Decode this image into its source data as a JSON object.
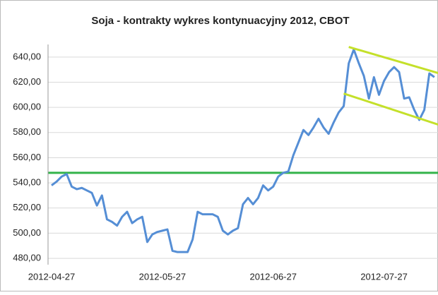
{
  "chart_data": {
    "type": "line",
    "title": "Soja - kontrakty wykres kontynuacyjny 2012, CBOT",
    "categories": [
      "2012-04-27",
      null,
      null,
      null,
      null,
      null,
      null,
      null,
      null,
      null,
      null,
      null,
      null,
      null,
      null,
      null,
      null,
      null,
      null,
      null,
      null,
      null,
      "2012-05-27",
      null,
      null,
      null,
      null,
      null,
      null,
      null,
      null,
      null,
      null,
      null,
      null,
      null,
      null,
      null,
      null,
      null,
      null,
      null,
      null,
      null,
      "2012-06-27",
      null,
      null,
      null,
      null,
      null,
      null,
      null,
      null,
      null,
      null,
      null,
      null,
      null,
      null,
      null,
      null,
      null,
      null,
      null,
      null,
      null,
      "2012-07-27",
      null,
      null,
      null,
      null,
      null,
      null,
      null,
      null,
      null,
      null
    ],
    "values": [
      538,
      541,
      545,
      547,
      537,
      535,
      536,
      534,
      532,
      522,
      530,
      511,
      509,
      506,
      513,
      517,
      508,
      511,
      513,
      493,
      499,
      501,
      502,
      503,
      486,
      485,
      485,
      485,
      495,
      517,
      515,
      515,
      515,
      513,
      502,
      499,
      502,
      504,
      523,
      528,
      523,
      528,
      538,
      534,
      537,
      545,
      548,
      549,
      562,
      572,
      582,
      578,
      584,
      591,
      584,
      579,
      588,
      596,
      601,
      635,
      646,
      635,
      625,
      607,
      624,
      610,
      621,
      628,
      632,
      628,
      607,
      608,
      598,
      590,
      598,
      627,
      624
    ],
    "color": "#558ed5",
    "ylim": [
      475,
      650
    ],
    "yticks": [
      {
        "value": 480,
        "label": "480,00"
      },
      {
        "value": 500,
        "label": "500,00"
      },
      {
        "value": 520,
        "label": "520,00"
      },
      {
        "value": 540,
        "label": "540,00"
      },
      {
        "value": 560,
        "label": "560,00"
      },
      {
        "value": 580,
        "label": "580,00"
      },
      {
        "value": 600,
        "label": "600,00"
      },
      {
        "value": 620,
        "label": "620,00"
      },
      {
        "value": 640,
        "label": "640,00"
      }
    ],
    "grid": true,
    "hlines": [
      {
        "value": 548,
        "color": "#33b34a"
      }
    ],
    "trend_lines": [
      {
        "color": "#c4e02a",
        "start_index": 59,
        "end_index": 77,
        "values": [
          648,
          627
        ]
      },
      {
        "color": "#c4e02a",
        "start_index": 58,
        "end_index": 77,
        "values": [
          611,
          586
        ]
      }
    ]
  }
}
